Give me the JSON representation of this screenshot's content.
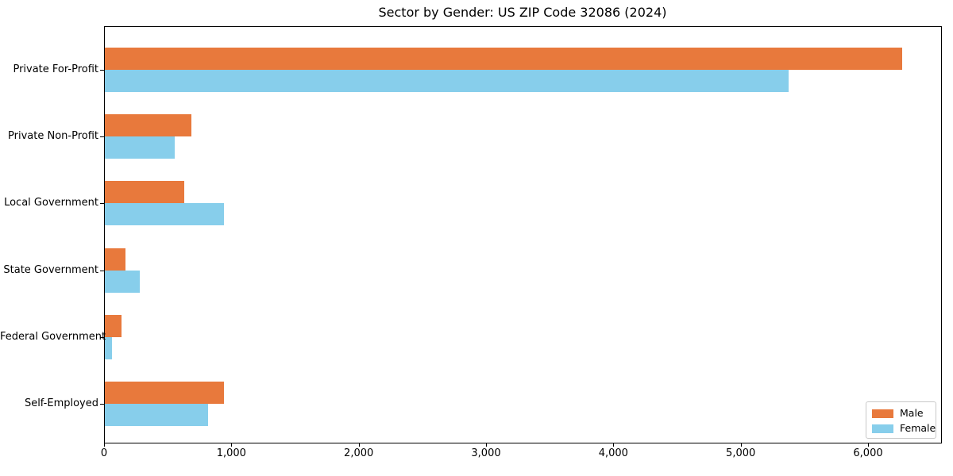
{
  "chart_data": {
    "type": "bar",
    "orientation": "horizontal",
    "title": "Sector by Gender: US ZIP Code 32086 (2024)",
    "xlabel": "",
    "ylabel": "",
    "categories": [
      "Private For-Profit",
      "Private Non-Profit",
      "Local Government",
      "State Government",
      "Federal Government",
      "Self-Employed"
    ],
    "series": [
      {
        "name": "Male",
        "color": "#E8793C",
        "values": [
          6260,
          680,
          625,
          160,
          130,
          935
        ]
      },
      {
        "name": "Female",
        "color": "#87CEEB",
        "values": [
          5370,
          550,
          935,
          275,
          55,
          810
        ]
      }
    ],
    "xlim": [
      0,
      6580
    ],
    "x_ticks": [
      0,
      1000,
      2000,
      3000,
      4000,
      5000,
      6000
    ],
    "x_tick_labels": [
      "0",
      "1,000",
      "2,000",
      "3,000",
      "4,000",
      "5,000",
      "6,000"
    ],
    "grid": false,
    "legend": {
      "position": "lower-right",
      "entries": [
        "Male",
        "Female"
      ]
    }
  },
  "colors": {
    "male": "#E8793C",
    "female": "#87CEEB",
    "axis": "#000000",
    "legend_border": "#c8c8c8",
    "background": "#ffffff"
  }
}
